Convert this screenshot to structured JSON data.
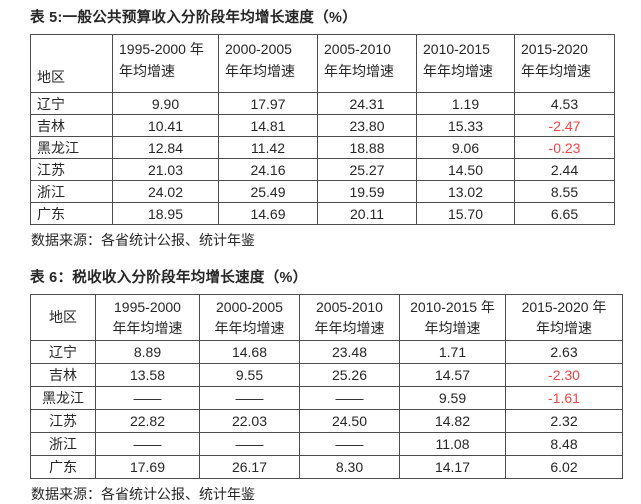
{
  "colors": {
    "text": "#262626",
    "border": "#4d4d4d",
    "border-strong": "#383838",
    "negative": "#fb4242",
    "bg": "#ffffff"
  },
  "table5": {
    "title": "表 5:一般公共预算收入分阶段年均增长速度（%）",
    "header": {
      "region": "地区",
      "cols": [
        {
          "line1": "1995-2000 年",
          "line2": "年均增速"
        },
        {
          "line1": "2000-2005",
          "line2": "年年均增速"
        },
        {
          "line1": "2005-2010",
          "line2": "年年均增速"
        },
        {
          "line1": "2010-2015",
          "line2": "年年均增速"
        },
        {
          "line1": "2015-2020",
          "line2": "年年均增速"
        }
      ]
    },
    "rows": [
      {
        "region": "辽宁",
        "v": [
          "9.90",
          "17.97",
          "24.31",
          "1.19",
          "4.53"
        ]
      },
      {
        "region": "吉林",
        "v": [
          "10.41",
          "14.81",
          "23.80",
          "15.33",
          "-2.47"
        ]
      },
      {
        "region": "黑龙江",
        "v": [
          "12.84",
          "11.42",
          "18.88",
          "9.06",
          "-0.23"
        ]
      },
      {
        "region": "江苏",
        "v": [
          "21.03",
          "24.16",
          "25.27",
          "14.50",
          "2.44"
        ]
      },
      {
        "region": "浙江",
        "v": [
          "24.02",
          "25.49",
          "19.59",
          "13.02",
          "8.55"
        ]
      },
      {
        "region": "广东",
        "v": [
          "18.95",
          "14.69",
          "20.11",
          "15.70",
          "6.65"
        ]
      }
    ],
    "source": "数据来源：各省统计公报、统计年鉴"
  },
  "table6": {
    "title": "表 6：税收收入分阶段年均增长速度（%）",
    "header": {
      "region": "地区",
      "cols": [
        {
          "line1": "1995-2000",
          "line2": "年年均增速"
        },
        {
          "line1": "2000-2005",
          "line2": "年年均增速"
        },
        {
          "line1": "2005-2010",
          "line2": "年年均增速"
        },
        {
          "line1": "2010-2015 年",
          "line2": "年均增速"
        },
        {
          "line1": "2015-2020 年",
          "line2": "年均增速"
        }
      ]
    },
    "rows": [
      {
        "region": "辽宁",
        "v": [
          "8.89",
          "14.68",
          "23.48",
          "1.71",
          "2.63"
        ]
      },
      {
        "region": "吉林",
        "v": [
          "13.58",
          "9.55",
          "25.26",
          "14.57",
          "-2.30"
        ]
      },
      {
        "region": "黑龙江",
        "v": [
          "——",
          "——",
          "——",
          "9.59",
          "-1.61"
        ]
      },
      {
        "region": "江苏",
        "v": [
          "22.82",
          "22.03",
          "24.50",
          "14.82",
          "2.32"
        ]
      },
      {
        "region": "浙江",
        "v": [
          "——",
          "——",
          "——",
          "11.08",
          "8.48"
        ]
      },
      {
        "region": "广东",
        "v": [
          "17.69",
          "26.17",
          "8.30",
          "14.17",
          "6.02"
        ]
      }
    ],
    "source": "数据来源：各省统计公报、统计年鉴"
  }
}
